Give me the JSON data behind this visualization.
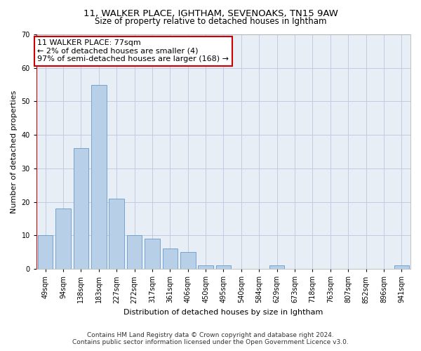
{
  "title1": "11, WALKER PLACE, IGHTHAM, SEVENOAKS, TN15 9AW",
  "title2": "Size of property relative to detached houses in Ightham",
  "xlabel": "Distribution of detached houses by size in Ightham",
  "ylabel": "Number of detached properties",
  "categories": [
    "49sqm",
    "94sqm",
    "138sqm",
    "183sqm",
    "227sqm",
    "272sqm",
    "317sqm",
    "361sqm",
    "406sqm",
    "450sqm",
    "495sqm",
    "540sqm",
    "584sqm",
    "629sqm",
    "673sqm",
    "718sqm",
    "763sqm",
    "807sqm",
    "852sqm",
    "896sqm",
    "941sqm"
  ],
  "values": [
    10,
    18,
    36,
    55,
    21,
    10,
    9,
    6,
    5,
    1,
    1,
    0,
    0,
    1,
    0,
    0,
    0,
    0,
    0,
    0,
    1
  ],
  "bar_color": "#b8cfe8",
  "bar_edge_color": "#6699cc",
  "highlight_color": "#cc0000",
  "annotation_line1": "11 WALKER PLACE: 77sqm",
  "annotation_line2": "← 2% of detached houses are smaller (4)",
  "annotation_line3": "97% of semi-detached houses are larger (168) →",
  "annotation_box_facecolor": "#ffffff",
  "annotation_box_edgecolor": "#cc0000",
  "ylim_max": 70,
  "yticks": [
    0,
    10,
    20,
    30,
    40,
    50,
    60,
    70
  ],
  "footer1": "Contains HM Land Registry data © Crown copyright and database right 2024.",
  "footer2": "Contains public sector information licensed under the Open Government Licence v3.0.",
  "background_color": "#ffffff",
  "plot_bg_color": "#e8eef6",
  "grid_color": "#c0cce0",
  "title1_fontsize": 9.5,
  "title2_fontsize": 8.5,
  "xlabel_fontsize": 8,
  "ylabel_fontsize": 8,
  "tick_fontsize": 7,
  "annotation_fontsize": 8,
  "footer_fontsize": 6.5
}
